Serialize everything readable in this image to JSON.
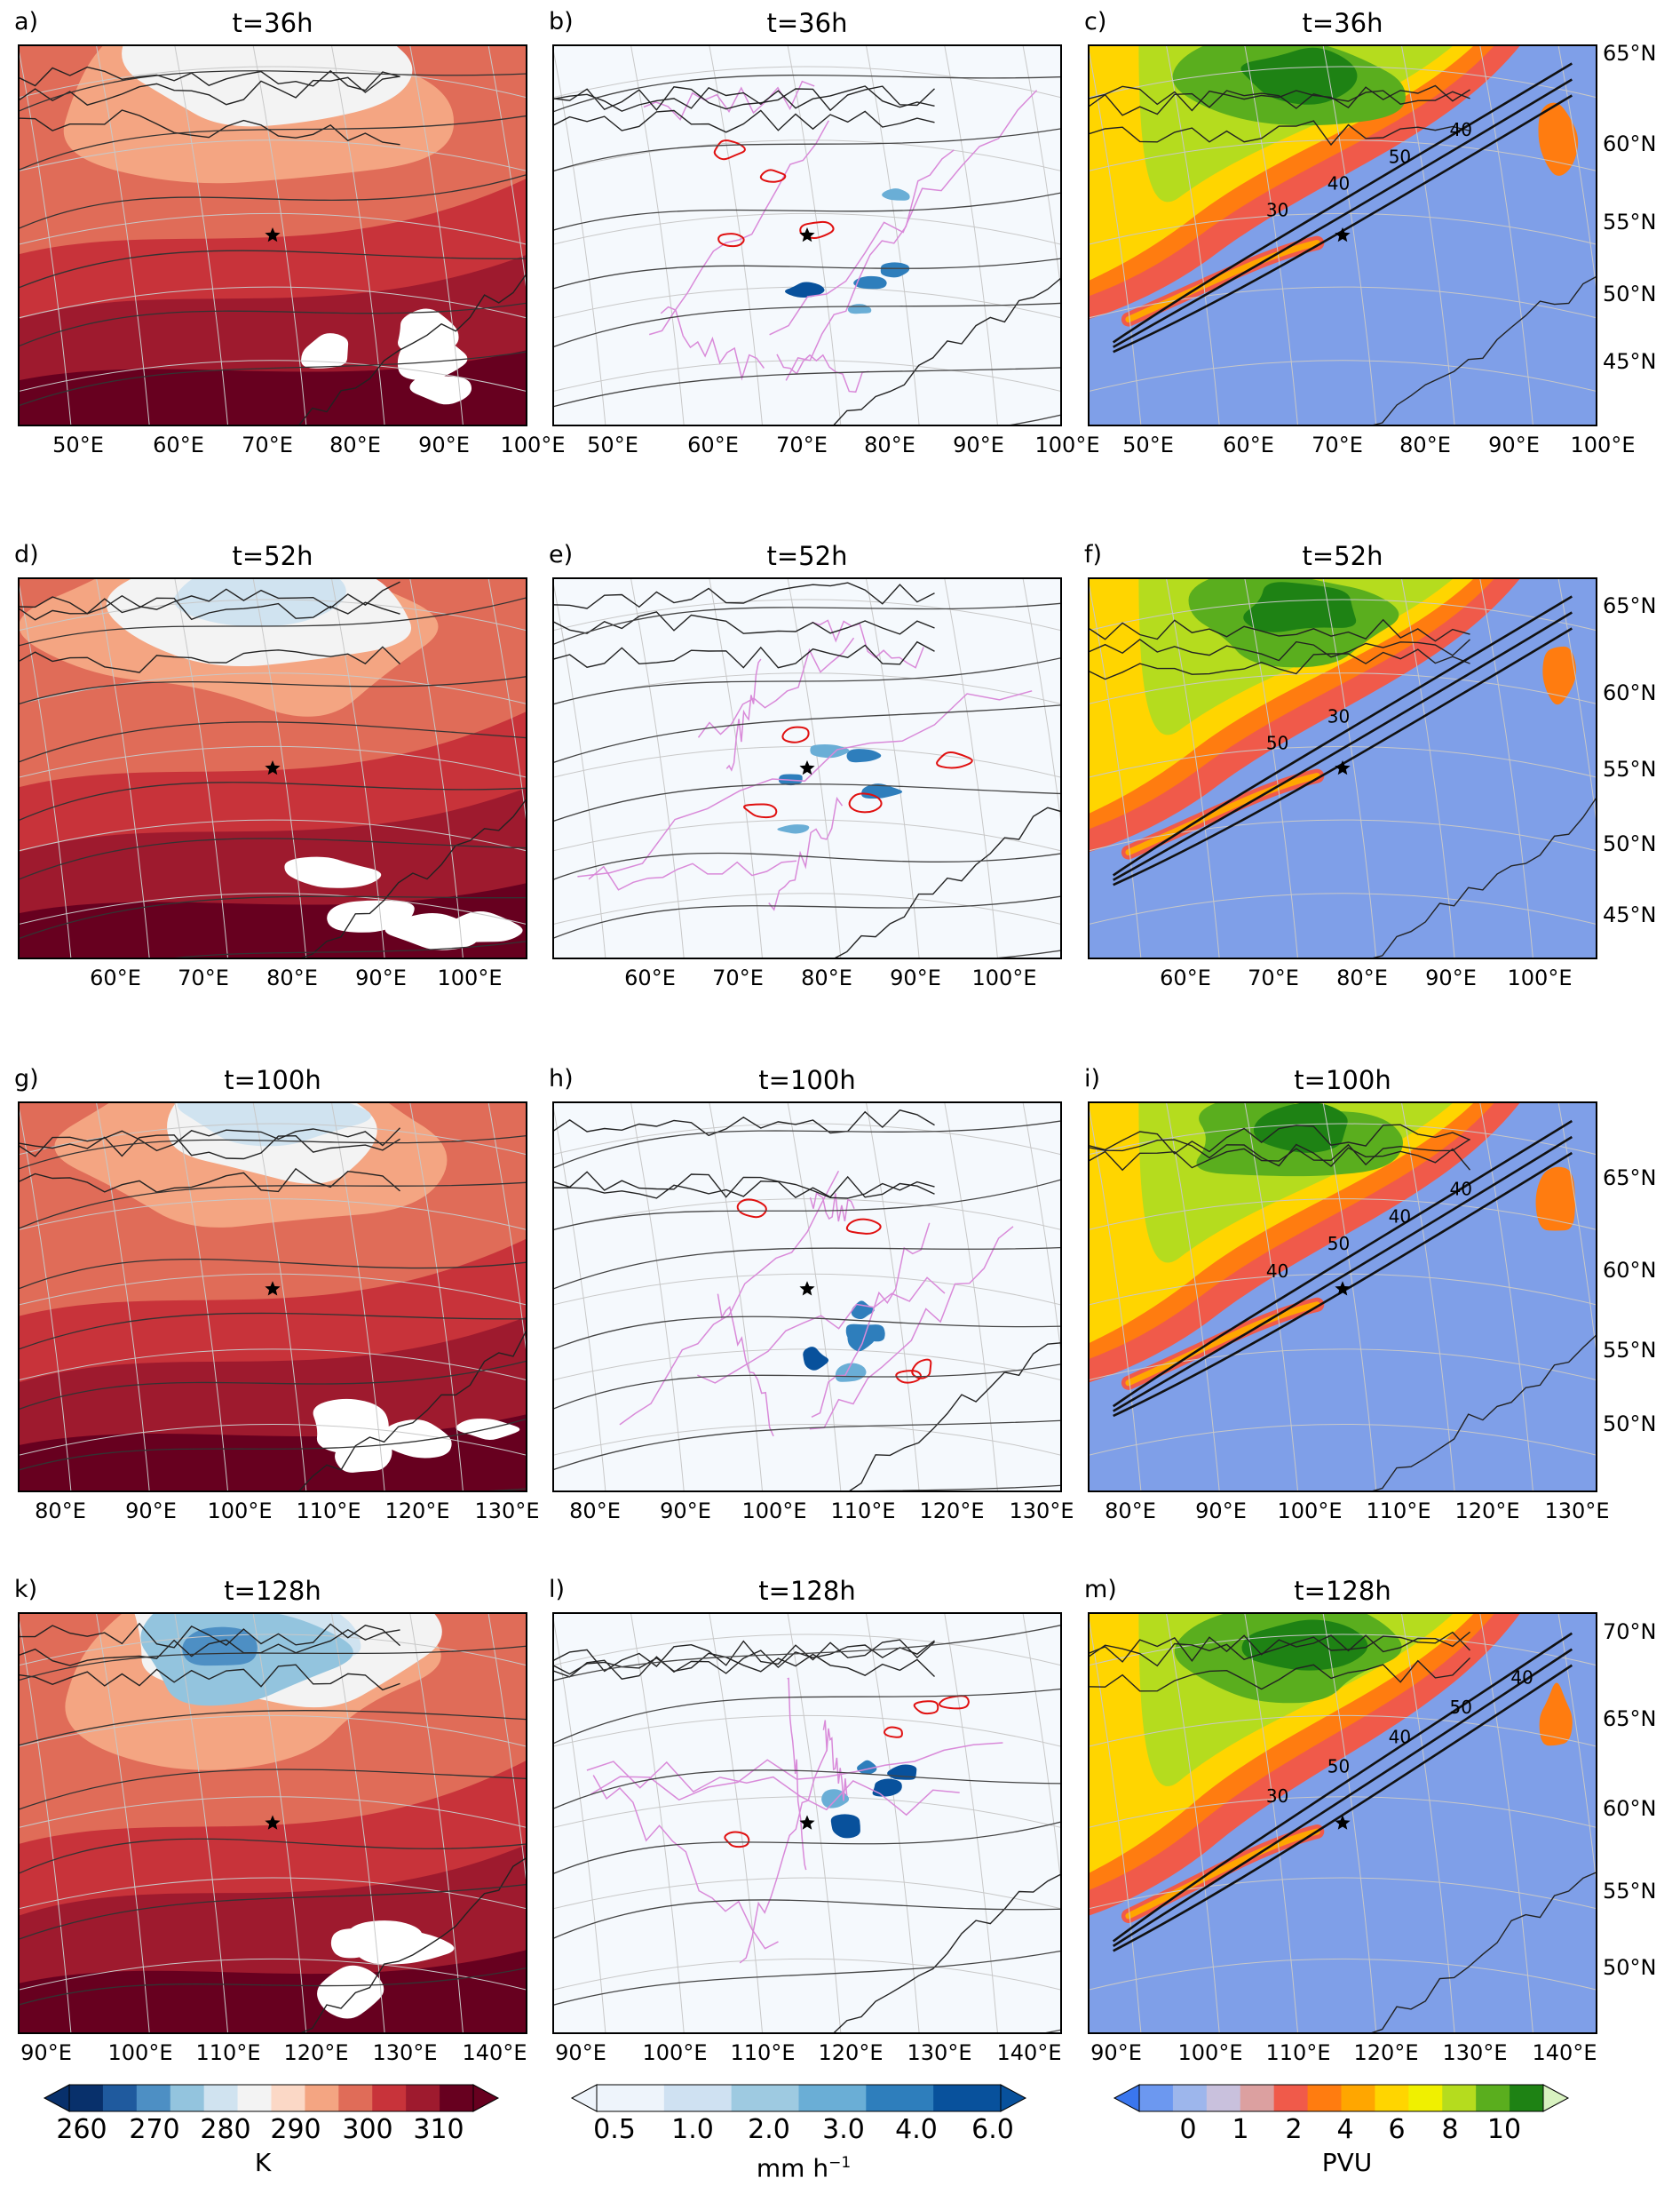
{
  "chart_data": {
    "type": "heatmap",
    "description_rows": [
      "t=36h",
      "t=52h",
      "t=100h",
      "t=128h"
    ],
    "rows": [
      {
        "time": "t=36h",
        "lon_ticks": [
          "50°E",
          "60°E",
          "70°E",
          "80°E",
          "90°E",
          "100°E"
        ],
        "lat_ticks": [
          "65°N",
          "60°N",
          "55°N",
          "50°N",
          "45°N"
        ],
        "panels": [
          {
            "label": "a)",
            "title": "t=36h",
            "field": "temperature",
            "contour_labels": []
          },
          {
            "label": "b)",
            "title": "t=36h",
            "field": "precipitation",
            "contour_labels": []
          },
          {
            "label": "c)",
            "title": "t=36h",
            "field": "pv",
            "contour_labels": [
              "30",
              "40",
              "50",
              "40"
            ]
          }
        ]
      },
      {
        "time": "t=52h",
        "lon_ticks": [
          "60°E",
          "70°E",
          "80°E",
          "90°E",
          "100°E"
        ],
        "lat_ticks": [
          "65°N",
          "60°N",
          "55°N",
          "50°N",
          "45°N"
        ],
        "panels": [
          {
            "label": "d)",
            "title": "t=52h",
            "field": "temperature",
            "contour_labels": []
          },
          {
            "label": "e)",
            "title": "t=52h",
            "field": "precipitation",
            "contour_labels": []
          },
          {
            "label": "f)",
            "title": "t=52h",
            "field": "pv",
            "contour_labels": [
              "50",
              "30"
            ]
          }
        ]
      },
      {
        "time": "t=100h",
        "lon_ticks": [
          "80°E",
          "90°E",
          "100°E",
          "110°E",
          "120°E",
          "130°E"
        ],
        "lat_ticks": [
          "65°N",
          "60°N",
          "55°N",
          "50°N"
        ],
        "panels": [
          {
            "label": "g)",
            "title": "t=100h",
            "field": "temperature",
            "contour_labels": []
          },
          {
            "label": "h)",
            "title": "t=100h",
            "field": "precipitation",
            "contour_labels": []
          },
          {
            "label": "i)",
            "title": "t=100h",
            "field": "pv",
            "contour_labels": [
              "40",
              "50",
              "40",
              "40"
            ]
          }
        ]
      },
      {
        "time": "t=128h",
        "lon_ticks": [
          "90°E",
          "100°E",
          "110°E",
          "120°E",
          "130°E",
          "140°E"
        ],
        "lat_ticks": [
          "70°N",
          "65°N",
          "60°N",
          "55°N",
          "50°N"
        ],
        "panels": [
          {
            "label": "k)",
            "title": "t=128h",
            "field": "temperature",
            "contour_labels": []
          },
          {
            "label": "l)",
            "title": "t=128h",
            "field": "precipitation",
            "contour_labels": []
          },
          {
            "label": "m)",
            "title": "t=128h",
            "field": "pv",
            "contour_labels": [
              "30",
              "50",
              "40",
              "50",
              "40"
            ]
          }
        ]
      }
    ],
    "colorbars": [
      {
        "field": "temperature",
        "unit": "K",
        "levels": [
          255,
          260,
          265,
          270,
          275,
          280,
          285,
          290,
          295,
          300,
          305,
          310,
          315
        ],
        "tick_labels": [
          "260",
          "270",
          "280",
          "290",
          "300",
          "310"
        ],
        "colors": [
          "#08306b",
          "#1f5a9e",
          "#4d8fc4",
          "#93c4de",
          "#d0e3f0",
          "#f3f3f3",
          "#fbd8c6",
          "#f4a582",
          "#e06c58",
          "#c8333a",
          "#9e1a2e",
          "#67001f"
        ],
        "extend": "both"
      },
      {
        "field": "precipitation",
        "unit": "mm h",
        "unit_exponent": "−1",
        "levels": [
          0.5,
          1.0,
          2.0,
          3.0,
          4.0,
          6.0
        ],
        "tick_labels": [
          "0.5",
          "1.0",
          "2.0",
          "3.0",
          "4.0",
          "6.0"
        ],
        "colors": [
          "#eef4fb",
          "#cfe1f2",
          "#9ecae1",
          "#6aaed6",
          "#2e7ebc",
          "#08519c"
        ],
        "extend": "both"
      },
      {
        "field": "pv",
        "unit": "PVU",
        "levels": [
          0,
          0.5,
          1,
          1.5,
          2,
          3,
          4,
          5,
          6,
          7,
          8,
          9,
          10
        ],
        "tick_labels": [
          "0",
          "1",
          "2",
          "4",
          "6",
          "8",
          "10"
        ],
        "colors": [
          "#3a76ee",
          "#6c98f0",
          "#9db6ec",
          "#c9c1dd",
          "#dca0a0",
          "#f05a4a",
          "#ff7c10",
          "#ffa600",
          "#ffd500",
          "#f0f000",
          "#b5dc1e",
          "#5aae1e",
          "#1e8214",
          "#d8f2c0"
        ],
        "extend": "both"
      }
    ],
    "marker": "star (cyclone centre)"
  }
}
